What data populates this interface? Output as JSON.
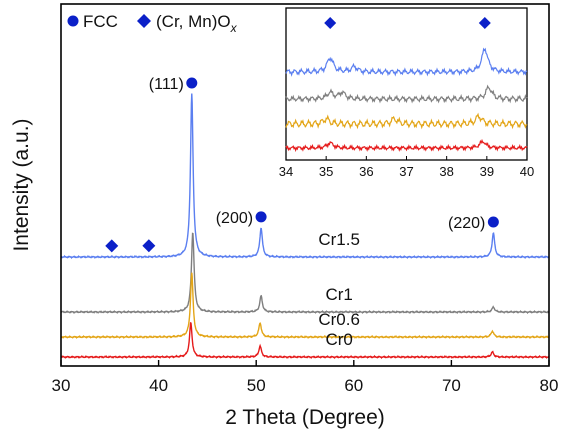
{
  "chart_data": {
    "type": "line",
    "xlabel": "2 Theta (Degree)",
    "ylabel": "Intensity (a.u.)",
    "xlim": [
      30,
      80
    ],
    "xticks": [
      30,
      40,
      50,
      60,
      70,
      80
    ],
    "y_ticks_shown": false,
    "legend": {
      "placement": "top-left",
      "entries": [
        {
          "symbol": "circle",
          "label": "FCC"
        },
        {
          "symbol": "diamond",
          "label_main": "(Cr, Mn)O",
          "label_sub": "x"
        }
      ]
    },
    "series": [
      {
        "name": "Cr1.5",
        "color": "#5b7ff0",
        "baseline": 100,
        "peaks": [
          {
            "x": 43.4,
            "height": 163
          },
          {
            "x": 50.5,
            "height": 29
          },
          {
            "x": 74.3,
            "height": 24
          }
        ]
      },
      {
        "name": "Cr1",
        "color": "#7f7f7f",
        "baseline": 45,
        "peaks": [
          {
            "x": 43.5,
            "height": 80
          },
          {
            "x": 50.5,
            "height": 16
          },
          {
            "x": 74.3,
            "height": 5
          }
        ]
      },
      {
        "name": "Cr0.6",
        "color": "#e3a517",
        "baseline": 20,
        "peaks": [
          {
            "x": 43.4,
            "height": 64
          },
          {
            "x": 50.4,
            "height": 14
          },
          {
            "x": 74.2,
            "height": 6
          }
        ]
      },
      {
        "name": "Cr0",
        "color": "#e51b1b",
        "baseline": 0,
        "peaks": [
          {
            "x": 43.3,
            "height": 34
          },
          {
            "x": 50.4,
            "height": 11
          },
          {
            "x": 74.2,
            "height": 5
          }
        ]
      }
    ],
    "annotations": [
      {
        "text": "(111)",
        "x": 43.4,
        "marker": "circle"
      },
      {
        "text": "(200)",
        "x": 50.5,
        "marker": "circle"
      },
      {
        "text": "(220)",
        "x": 74.3,
        "marker": "circle"
      },
      {
        "text": "",
        "x": 35.2,
        "marker": "diamond"
      },
      {
        "text": "",
        "x": 39.0,
        "marker": "diamond"
      }
    ],
    "inset": {
      "xlim": [
        34,
        40
      ],
      "xticks": [
        34,
        35,
        36,
        37,
        38,
        39,
        40
      ],
      "markers": [
        {
          "x": 35.1,
          "symbol": "diamond"
        },
        {
          "x": 38.95,
          "symbol": "diamond"
        }
      ],
      "series": [
        {
          "name": "Cr1.5",
          "color": "#5b7ff0",
          "peaks": [
            {
              "x": 35.1,
              "height": 0.55
            },
            {
              "x": 35.7,
              "height": 0.2
            },
            {
              "x": 38.95,
              "height": 0.9
            }
          ]
        },
        {
          "name": "Cr1",
          "color": "#7f7f7f",
          "peaks": [
            {
              "x": 35.1,
              "height": 0.25
            },
            {
              "x": 35.4,
              "height": 0.25
            },
            {
              "x": 39.05,
              "height": 0.45
            }
          ]
        },
        {
          "name": "Cr0.6",
          "color": "#e3a517",
          "peaks": [
            {
              "x": 35.0,
              "height": 0.2
            },
            {
              "x": 36.7,
              "height": 0.2
            },
            {
              "x": 38.8,
              "height": 0.3
            }
          ]
        },
        {
          "name": "Cr0",
          "color": "#e51b1b",
          "peaks": [
            {
              "x": 35.1,
              "height": 0.2
            },
            {
              "x": 38.9,
              "height": 0.25
            }
          ]
        }
      ]
    }
  }
}
